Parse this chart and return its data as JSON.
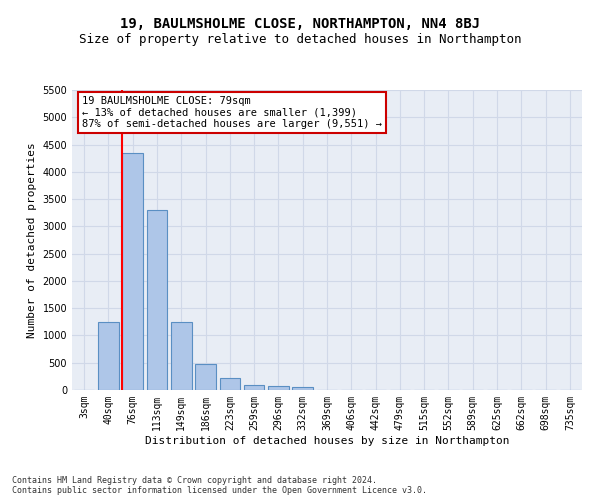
{
  "title": "19, BAULMSHOLME CLOSE, NORTHAMPTON, NN4 8BJ",
  "subtitle": "Size of property relative to detached houses in Northampton",
  "xlabel": "Distribution of detached houses by size in Northampton",
  "ylabel": "Number of detached properties",
  "categories": [
    "3sqm",
    "40sqm",
    "76sqm",
    "113sqm",
    "149sqm",
    "186sqm",
    "223sqm",
    "259sqm",
    "296sqm",
    "332sqm",
    "369sqm",
    "406sqm",
    "442sqm",
    "479sqm",
    "515sqm",
    "552sqm",
    "589sqm",
    "625sqm",
    "662sqm",
    "698sqm",
    "735sqm"
  ],
  "values": [
    0,
    1250,
    4350,
    3300,
    1250,
    480,
    220,
    90,
    70,
    55,
    0,
    0,
    0,
    0,
    0,
    0,
    0,
    0,
    0,
    0,
    0
  ],
  "bar_color": "#aec6e8",
  "bar_edge_color": "#5a8fc3",
  "annotation_text": "19 BAULMSHOLME CLOSE: 79sqm\n← 13% of detached houses are smaller (1,399)\n87% of semi-detached houses are larger (9,551) →",
  "annotation_box_color": "#ffffff",
  "annotation_box_edge": "#cc0000",
  "ylim": [
    0,
    5500
  ],
  "yticks": [
    0,
    500,
    1000,
    1500,
    2000,
    2500,
    3000,
    3500,
    4000,
    4500,
    5000,
    5500
  ],
  "grid_color": "#d0d8e8",
  "bg_color": "#e8edf5",
  "footer": "Contains HM Land Registry data © Crown copyright and database right 2024.\nContains public sector information licensed under the Open Government Licence v3.0.",
  "title_fontsize": 10,
  "subtitle_fontsize": 9,
  "tick_fontsize": 7,
  "ylabel_fontsize": 8,
  "xlabel_fontsize": 8,
  "footer_fontsize": 6,
  "annotation_fontsize": 7.5
}
